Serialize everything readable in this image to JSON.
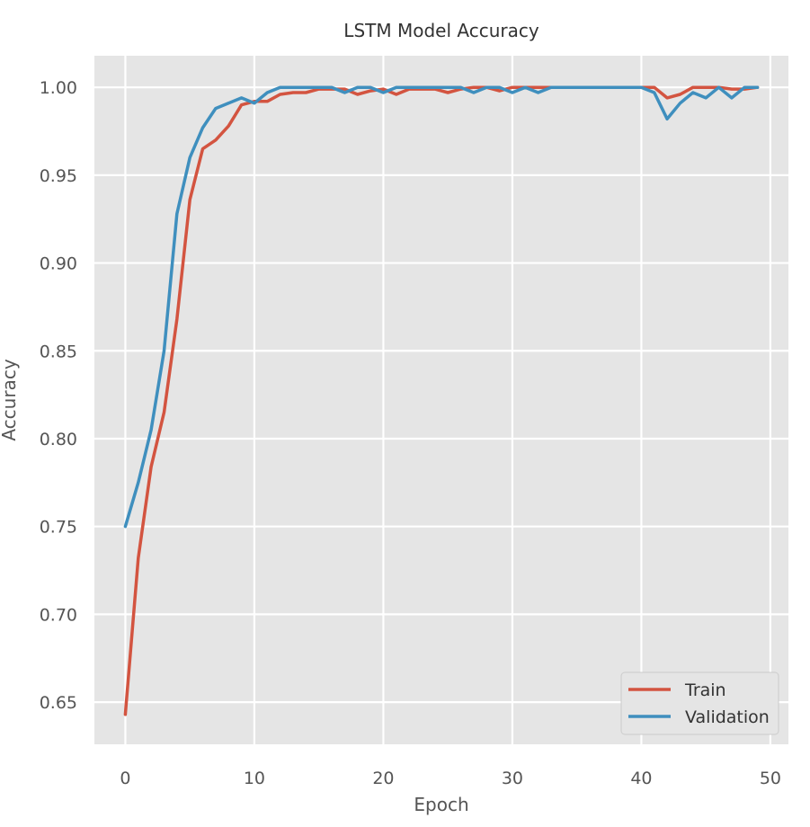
{
  "chart_data": {
    "type": "line",
    "title": "LSTM Model Accuracy",
    "xlabel": "Epoch",
    "ylabel": "Accuracy",
    "xlim": [
      -2.4,
      51.4
    ],
    "ylim": [
      0.626,
      1.018
    ],
    "xticks": [
      0,
      10,
      20,
      30,
      40,
      50
    ],
    "yticks": [
      0.65,
      0.7,
      0.75,
      0.8,
      0.85,
      0.9,
      0.95,
      1.0
    ],
    "xtick_labels": [
      "0",
      "10",
      "20",
      "30",
      "40",
      "50"
    ],
    "ytick_labels": [
      "0.65",
      "0.70",
      "0.75",
      "0.80",
      "0.85",
      "0.90",
      "0.95",
      "1.00"
    ],
    "grid": true,
    "legend_position": "bottom-right",
    "x": [
      0,
      1,
      2,
      3,
      4,
      5,
      6,
      7,
      8,
      9,
      10,
      11,
      12,
      13,
      14,
      15,
      16,
      17,
      18,
      19,
      20,
      21,
      22,
      23,
      24,
      25,
      26,
      27,
      28,
      29,
      30,
      31,
      32,
      33,
      34,
      35,
      36,
      37,
      38,
      39,
      40,
      41,
      42,
      43,
      44,
      45,
      46,
      47,
      48,
      49
    ],
    "series": [
      {
        "name": "Train",
        "color": "#d35440",
        "values": [
          0.643,
          0.732,
          0.784,
          0.815,
          0.868,
          0.936,
          0.965,
          0.97,
          0.978,
          0.99,
          0.992,
          0.992,
          0.996,
          0.997,
          0.997,
          0.999,
          0.999,
          0.999,
          0.996,
          0.998,
          0.999,
          0.996,
          0.999,
          0.999,
          0.999,
          0.997,
          0.999,
          1.0,
          1.0,
          0.998,
          1.0,
          1.0,
          1.0,
          1.0,
          1.0,
          1.0,
          1.0,
          1.0,
          1.0,
          1.0,
          1.0,
          1.0,
          0.994,
          0.996,
          1.0,
          1.0,
          1.0,
          0.999,
          0.999,
          1.0
        ]
      },
      {
        "name": "Validation",
        "color": "#3f8fbe",
        "values": [
          0.75,
          0.775,
          0.805,
          0.85,
          0.928,
          0.96,
          0.977,
          0.988,
          0.991,
          0.994,
          0.991,
          0.997,
          1.0,
          1.0,
          1.0,
          1.0,
          1.0,
          0.997,
          1.0,
          1.0,
          0.997,
          1.0,
          1.0,
          1.0,
          1.0,
          1.0,
          1.0,
          0.997,
          1.0,
          1.0,
          0.997,
          1.0,
          0.997,
          1.0,
          1.0,
          1.0,
          1.0,
          1.0,
          1.0,
          1.0,
          1.0,
          0.997,
          0.982,
          0.991,
          0.997,
          0.994,
          1.0,
          0.994,
          1.0,
          1.0
        ]
      }
    ]
  }
}
